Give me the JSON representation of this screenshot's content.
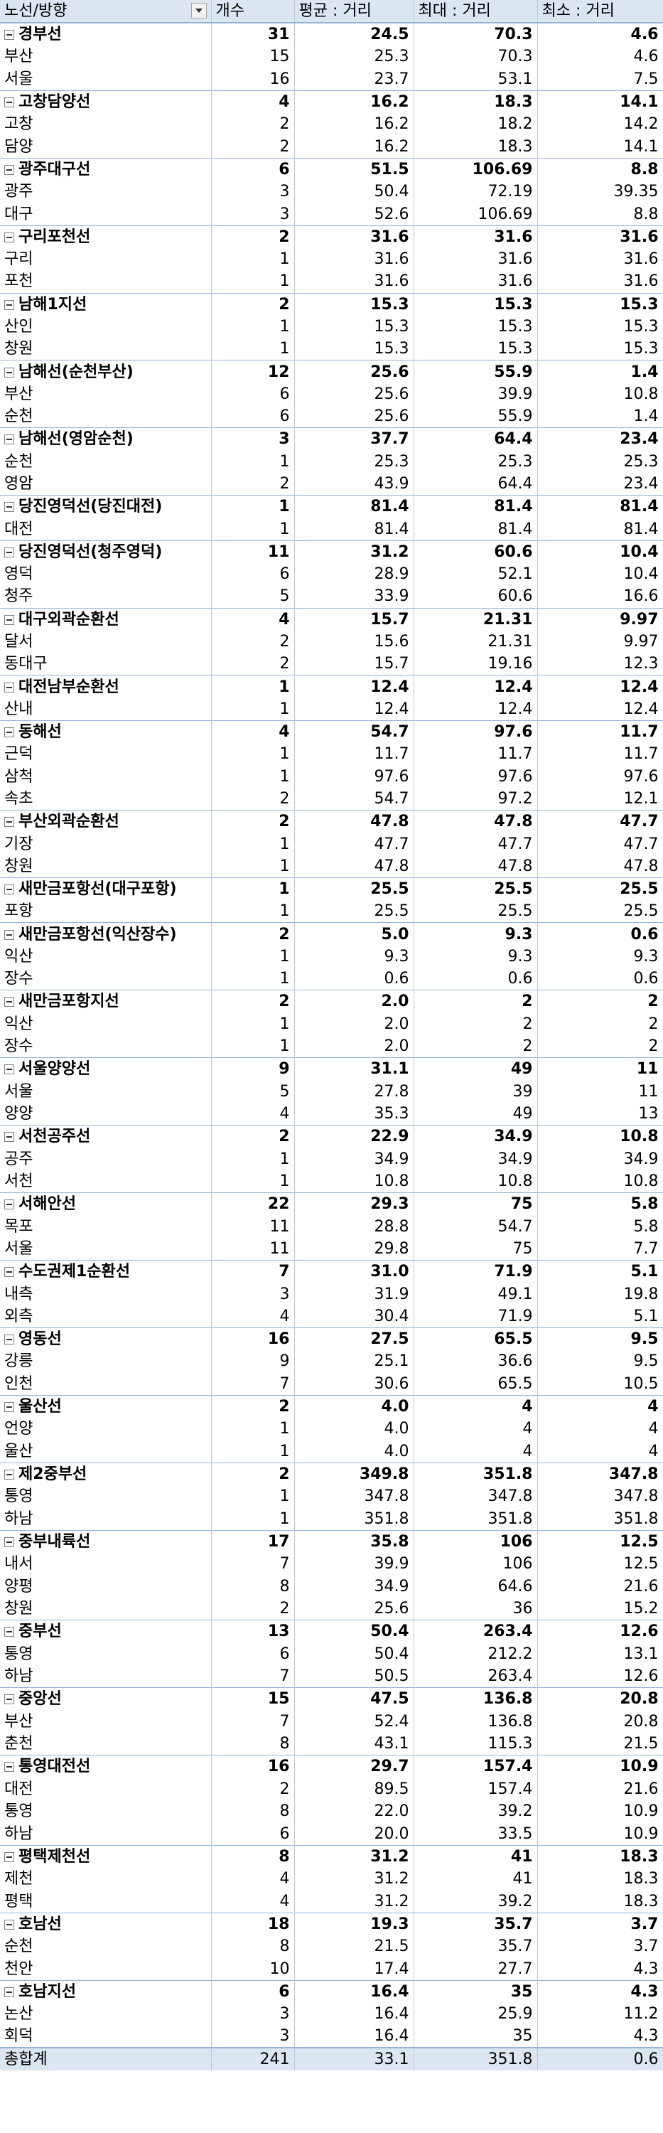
{
  "headers": [
    "노선/방향",
    "개수",
    "평균 : 거리",
    "최대 : 거리",
    "최소 : 거리"
  ],
  "groups": [
    {
      "name": "경부선",
      "count": "31",
      "avg": "24.5",
      "max": "70.3",
      "min": "4.6",
      "children": [
        {
          "name": "부산",
          "count": "15",
          "avg": "25.3",
          "max": "70.3",
          "min": "4.6"
        },
        {
          "name": "서울",
          "count": "16",
          "avg": "23.7",
          "max": "53.1",
          "min": "7.5"
        }
      ]
    },
    {
      "name": "고창담양선",
      "count": "4",
      "avg": "16.2",
      "max": "18.3",
      "min": "14.1",
      "children": [
        {
          "name": "고창",
          "count": "2",
          "avg": "16.2",
          "max": "18.2",
          "min": "14.2"
        },
        {
          "name": "담양",
          "count": "2",
          "avg": "16.2",
          "max": "18.3",
          "min": "14.1"
        }
      ]
    },
    {
      "name": "광주대구선",
      "count": "6",
      "avg": "51.5",
      "max": "106.69",
      "min": "8.8",
      "children": [
        {
          "name": "광주",
          "count": "3",
          "avg": "50.4",
          "max": "72.19",
          "min": "39.35"
        },
        {
          "name": "대구",
          "count": "3",
          "avg": "52.6",
          "max": "106.69",
          "min": "8.8"
        }
      ]
    },
    {
      "name": "구리포천선",
      "count": "2",
      "avg": "31.6",
      "max": "31.6",
      "min": "31.6",
      "children": [
        {
          "name": "구리",
          "count": "1",
          "avg": "31.6",
          "max": "31.6",
          "min": "31.6"
        },
        {
          "name": "포천",
          "count": "1",
          "avg": "31.6",
          "max": "31.6",
          "min": "31.6"
        }
      ]
    },
    {
      "name": "남해1지선",
      "count": "2",
      "avg": "15.3",
      "max": "15.3",
      "min": "15.3",
      "children": [
        {
          "name": "산인",
          "count": "1",
          "avg": "15.3",
          "max": "15.3",
          "min": "15.3"
        },
        {
          "name": "창원",
          "count": "1",
          "avg": "15.3",
          "max": "15.3",
          "min": "15.3"
        }
      ]
    },
    {
      "name": "남해선(순천부산)",
      "count": "12",
      "avg": "25.6",
      "max": "55.9",
      "min": "1.4",
      "children": [
        {
          "name": "부산",
          "count": "6",
          "avg": "25.6",
          "max": "39.9",
          "min": "10.8"
        },
        {
          "name": "순천",
          "count": "6",
          "avg": "25.6",
          "max": "55.9",
          "min": "1.4"
        }
      ]
    },
    {
      "name": "남해선(영암순천)",
      "count": "3",
      "avg": "37.7",
      "max": "64.4",
      "min": "23.4",
      "children": [
        {
          "name": "순천",
          "count": "1",
          "avg": "25.3",
          "max": "25.3",
          "min": "25.3"
        },
        {
          "name": "영암",
          "count": "2",
          "avg": "43.9",
          "max": "64.4",
          "min": "23.4"
        }
      ]
    },
    {
      "name": "당진영덕선(당진대전)",
      "count": "1",
      "avg": "81.4",
      "max": "81.4",
      "min": "81.4",
      "children": [
        {
          "name": "대전",
          "count": "1",
          "avg": "81.4",
          "max": "81.4",
          "min": "81.4"
        }
      ]
    },
    {
      "name": "당진영덕선(청주영덕)",
      "count": "11",
      "avg": "31.2",
      "max": "60.6",
      "min": "10.4",
      "children": [
        {
          "name": "영덕",
          "count": "6",
          "avg": "28.9",
          "max": "52.1",
          "min": "10.4"
        },
        {
          "name": "청주",
          "count": "5",
          "avg": "33.9",
          "max": "60.6",
          "min": "16.6"
        }
      ]
    },
    {
      "name": "대구외곽순환선",
      "count": "4",
      "avg": "15.7",
      "max": "21.31",
      "min": "9.97",
      "children": [
        {
          "name": "달서",
          "count": "2",
          "avg": "15.6",
          "max": "21.31",
          "min": "9.97"
        },
        {
          "name": "동대구",
          "count": "2",
          "avg": "15.7",
          "max": "19.16",
          "min": "12.3"
        }
      ]
    },
    {
      "name": "대전남부순환선",
      "count": "1",
      "avg": "12.4",
      "max": "12.4",
      "min": "12.4",
      "children": [
        {
          "name": "산내",
          "count": "1",
          "avg": "12.4",
          "max": "12.4",
          "min": "12.4"
        }
      ]
    },
    {
      "name": "동해선",
      "count": "4",
      "avg": "54.7",
      "max": "97.6",
      "min": "11.7",
      "children": [
        {
          "name": "근덕",
          "count": "1",
          "avg": "11.7",
          "max": "11.7",
          "min": "11.7"
        },
        {
          "name": "삼척",
          "count": "1",
          "avg": "97.6",
          "max": "97.6",
          "min": "97.6"
        },
        {
          "name": "속초",
          "count": "2",
          "avg": "54.7",
          "max": "97.2",
          "min": "12.1"
        }
      ]
    },
    {
      "name": "부산외곽순환선",
      "count": "2",
      "avg": "47.8",
      "max": "47.8",
      "min": "47.7",
      "children": [
        {
          "name": "기장",
          "count": "1",
          "avg": "47.7",
          "max": "47.7",
          "min": "47.7"
        },
        {
          "name": "창원",
          "count": "1",
          "avg": "47.8",
          "max": "47.8",
          "min": "47.8"
        }
      ]
    },
    {
      "name": "새만금포항선(대구포항)",
      "count": "1",
      "avg": "25.5",
      "max": "25.5",
      "min": "25.5",
      "children": [
        {
          "name": "포항",
          "count": "1",
          "avg": "25.5",
          "max": "25.5",
          "min": "25.5"
        }
      ]
    },
    {
      "name": "새만금포항선(익산장수)",
      "count": "2",
      "avg": "5.0",
      "max": "9.3",
      "min": "0.6",
      "children": [
        {
          "name": "익산",
          "count": "1",
          "avg": "9.3",
          "max": "9.3",
          "min": "9.3"
        },
        {
          "name": "장수",
          "count": "1",
          "avg": "0.6",
          "max": "0.6",
          "min": "0.6"
        }
      ]
    },
    {
      "name": "새만금포항지선",
      "count": "2",
      "avg": "2.0",
      "max": "2",
      "min": "2",
      "children": [
        {
          "name": "익산",
          "count": "1",
          "avg": "2.0",
          "max": "2",
          "min": "2"
        },
        {
          "name": "장수",
          "count": "1",
          "avg": "2.0",
          "max": "2",
          "min": "2"
        }
      ]
    },
    {
      "name": "서울양양선",
      "count": "9",
      "avg": "31.1",
      "max": "49",
      "min": "11",
      "children": [
        {
          "name": "서울",
          "count": "5",
          "avg": "27.8",
          "max": "39",
          "min": "11"
        },
        {
          "name": "양양",
          "count": "4",
          "avg": "35.3",
          "max": "49",
          "min": "13"
        }
      ]
    },
    {
      "name": "서천공주선",
      "count": "2",
      "avg": "22.9",
      "max": "34.9",
      "min": "10.8",
      "children": [
        {
          "name": "공주",
          "count": "1",
          "avg": "34.9",
          "max": "34.9",
          "min": "34.9"
        },
        {
          "name": "서천",
          "count": "1",
          "avg": "10.8",
          "max": "10.8",
          "min": "10.8"
        }
      ]
    },
    {
      "name": "서해안선",
      "count": "22",
      "avg": "29.3",
      "max": "75",
      "min": "5.8",
      "children": [
        {
          "name": "목포",
          "count": "11",
          "avg": "28.8",
          "max": "54.7",
          "min": "5.8"
        },
        {
          "name": "서울",
          "count": "11",
          "avg": "29.8",
          "max": "75",
          "min": "7.7"
        }
      ]
    },
    {
      "name": "수도권제1순환선",
      "count": "7",
      "avg": "31.0",
      "max": "71.9",
      "min": "5.1",
      "children": [
        {
          "name": "내측",
          "count": "3",
          "avg": "31.9",
          "max": "49.1",
          "min": "19.8"
        },
        {
          "name": "외측",
          "count": "4",
          "avg": "30.4",
          "max": "71.9",
          "min": "5.1"
        }
      ]
    },
    {
      "name": "영동선",
      "count": "16",
      "avg": "27.5",
      "max": "65.5",
      "min": "9.5",
      "children": [
        {
          "name": "강릉",
          "count": "9",
          "avg": "25.1",
          "max": "36.6",
          "min": "9.5"
        },
        {
          "name": "인천",
          "count": "7",
          "avg": "30.6",
          "max": "65.5",
          "min": "10.5"
        }
      ]
    },
    {
      "name": "울산선",
      "count": "2",
      "avg": "4.0",
      "max": "4",
      "min": "4",
      "children": [
        {
          "name": "언양",
          "count": "1",
          "avg": "4.0",
          "max": "4",
          "min": "4"
        },
        {
          "name": "울산",
          "count": "1",
          "avg": "4.0",
          "max": "4",
          "min": "4"
        }
      ]
    },
    {
      "name": "제2중부선",
      "count": "2",
      "avg": "349.8",
      "max": "351.8",
      "min": "347.8",
      "children": [
        {
          "name": "통영",
          "count": "1",
          "avg": "347.8",
          "max": "347.8",
          "min": "347.8"
        },
        {
          "name": "하남",
          "count": "1",
          "avg": "351.8",
          "max": "351.8",
          "min": "351.8"
        }
      ]
    },
    {
      "name": "중부내륙선",
      "count": "17",
      "avg": "35.8",
      "max": "106",
      "min": "12.5",
      "children": [
        {
          "name": "내서",
          "count": "7",
          "avg": "39.9",
          "max": "106",
          "min": "12.5"
        },
        {
          "name": "양평",
          "count": "8",
          "avg": "34.9",
          "max": "64.6",
          "min": "21.6"
        },
        {
          "name": "창원",
          "count": "2",
          "avg": "25.6",
          "max": "36",
          "min": "15.2"
        }
      ]
    },
    {
      "name": "중부선",
      "count": "13",
      "avg": "50.4",
      "max": "263.4",
      "min": "12.6",
      "children": [
        {
          "name": "통영",
          "count": "6",
          "avg": "50.4",
          "max": "212.2",
          "min": "13.1"
        },
        {
          "name": "하남",
          "count": "7",
          "avg": "50.5",
          "max": "263.4",
          "min": "12.6"
        }
      ]
    },
    {
      "name": "중앙선",
      "count": "15",
      "avg": "47.5",
      "max": "136.8",
      "min": "20.8",
      "children": [
        {
          "name": "부산",
          "count": "7",
          "avg": "52.4",
          "max": "136.8",
          "min": "20.8"
        },
        {
          "name": "춘천",
          "count": "8",
          "avg": "43.1",
          "max": "115.3",
          "min": "21.5"
        }
      ]
    },
    {
      "name": "통영대전선",
      "count": "16",
      "avg": "29.7",
      "max": "157.4",
      "min": "10.9",
      "children": [
        {
          "name": "대전",
          "count": "2",
          "avg": "89.5",
          "max": "157.4",
          "min": "21.6"
        },
        {
          "name": "통영",
          "count": "8",
          "avg": "22.0",
          "max": "39.2",
          "min": "10.9"
        },
        {
          "name": "하남",
          "count": "6",
          "avg": "20.0",
          "max": "33.5",
          "min": "10.9"
        }
      ]
    },
    {
      "name": "평택제천선",
      "count": "8",
      "avg": "31.2",
      "max": "41",
      "min": "18.3",
      "children": [
        {
          "name": "제천",
          "count": "4",
          "avg": "31.2",
          "max": "41",
          "min": "18.3"
        },
        {
          "name": "평택",
          "count": "4",
          "avg": "31.2",
          "max": "39.2",
          "min": "18.3"
        }
      ]
    },
    {
      "name": "호남선",
      "count": "18",
      "avg": "19.3",
      "max": "35.7",
      "min": "3.7",
      "children": [
        {
          "name": "순천",
          "count": "8",
          "avg": "21.5",
          "max": "35.7",
          "min": "3.7"
        },
        {
          "name": "천안",
          "count": "10",
          "avg": "17.4",
          "max": "27.7",
          "min": "4.3"
        }
      ]
    },
    {
      "name": "호남지선",
      "count": "6",
      "avg": "16.4",
      "max": "35",
      "min": "4.3",
      "children": [
        {
          "name": "논산",
          "count": "3",
          "avg": "16.4",
          "max": "25.9",
          "min": "11.2"
        },
        {
          "name": "회덕",
          "count": "3",
          "avg": "16.4",
          "max": "35",
          "min": "4.3"
        }
      ]
    }
  ],
  "total": {
    "name": "총합계",
    "count": "241",
    "avg": "33.1",
    "max": "351.8",
    "min": "0.6"
  }
}
